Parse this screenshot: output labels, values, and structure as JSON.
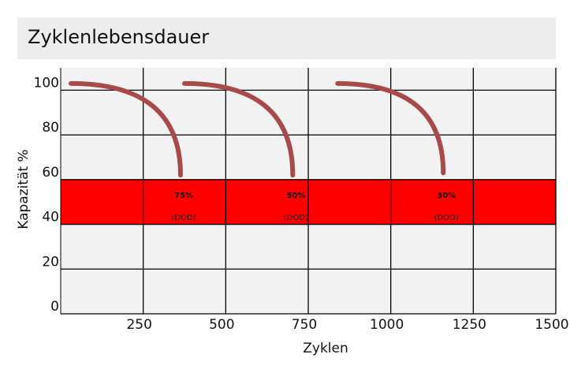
{
  "chart_data": {
    "type": "line",
    "title": "Zyklenlebensdauer",
    "x_label": "Zyklen",
    "y_label": "Kapazität %",
    "xlim": [
      0,
      1500
    ],
    "ylim": [
      0,
      110
    ],
    "xticks": [
      250,
      500,
      750,
      1000,
      1250,
      1500
    ],
    "yticks": [
      0,
      20,
      40,
      60,
      80,
      100
    ],
    "grid": true,
    "band": {
      "from": 40,
      "to": 60,
      "color": "#ff0000"
    },
    "series": [
      {
        "name": "75%",
        "note": "(DOD)",
        "color": "#a84a4a",
        "x": [
          31,
          280,
          363
        ],
        "values": [
          103,
          92.75,
          62
        ]
      },
      {
        "name": "50%",
        "note": "(DOD)",
        "color": "#a84a4a",
        "x": [
          375,
          621,
          703
        ],
        "values": [
          103,
          92.75,
          62
        ]
      },
      {
        "name": "30%",
        "note": "(DOD)",
        "color": "#a84a4a",
        "x": [
          839,
          1079,
          1159
        ],
        "values": [
          103,
          93,
          63
        ]
      }
    ]
  }
}
